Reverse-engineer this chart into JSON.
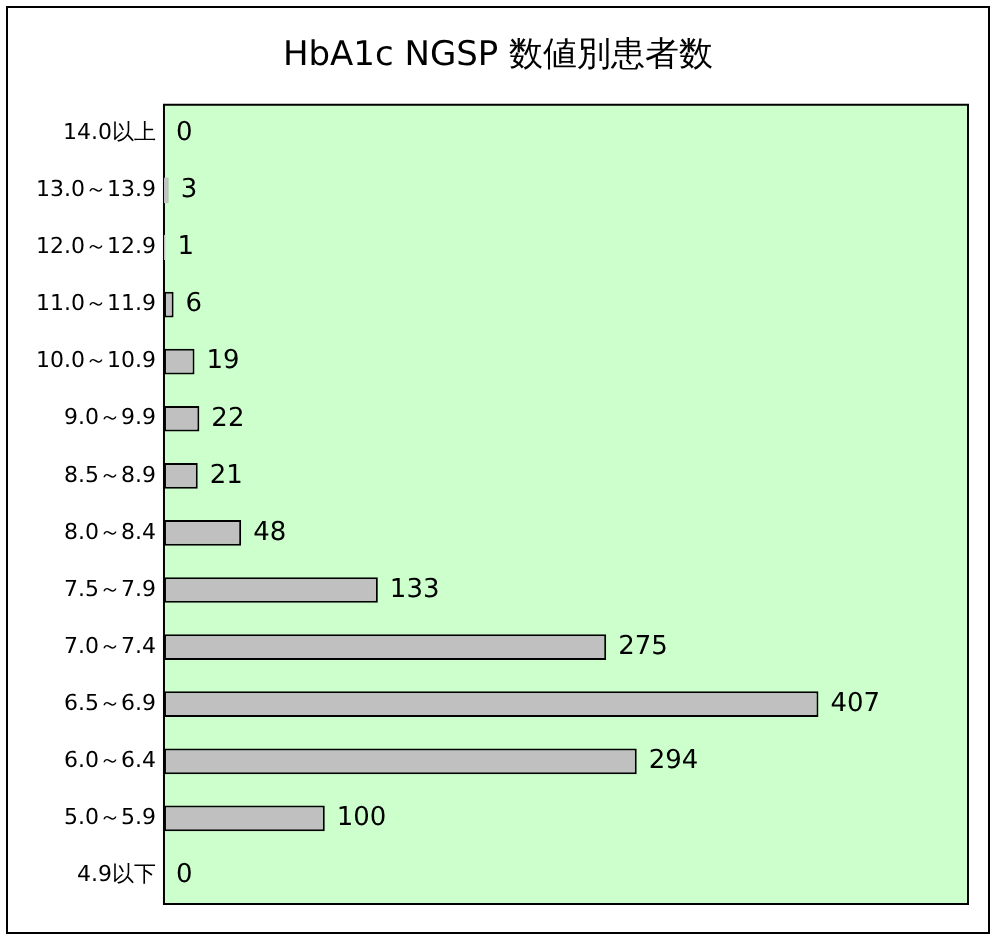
{
  "chart_data": {
    "type": "bar",
    "orientation": "horizontal",
    "title": "HbA1c NGSP 数値別患者数",
    "categories": [
      "14.0以上",
      "13.0～13.9",
      "12.0～12.9",
      "11.0～11.9",
      "10.0～10.9",
      "9.0～9.9",
      "8.5～8.9",
      "8.0～8.4",
      "7.5～7.9",
      "7.0～7.4",
      "6.5～6.9",
      "6.0～6.4",
      "5.0～5.9",
      "4.9以下"
    ],
    "values": [
      0,
      3,
      1,
      6,
      19,
      22,
      21,
      48,
      133,
      275,
      407,
      294,
      100,
      0
    ],
    "color": "#c0c0c0",
    "data_labels": true,
    "grid": false,
    "legend": false
  }
}
